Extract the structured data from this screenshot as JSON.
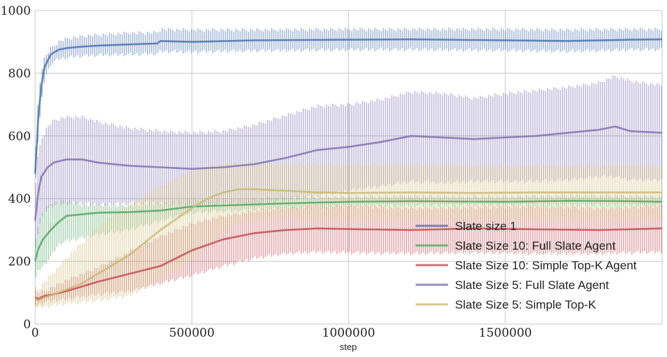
{
  "chart_data": {
    "type": "line",
    "title": "",
    "xlabel": "step",
    "ylabel": "",
    "xlim": [
      0,
      2000000
    ],
    "ylim": [
      0,
      1000
    ],
    "xticks": [
      0,
      500000,
      1000000,
      1500000
    ],
    "xtick_labels": [
      "0",
      "500000",
      "1000000",
      "1500000"
    ],
    "yticks": [
      0,
      200,
      400,
      600,
      800,
      1000
    ],
    "ytick_labels": [
      "0",
      "200",
      "400",
      "600",
      "800",
      "1000"
    ],
    "grid": true,
    "legend_position": "lower-right",
    "series": [
      {
        "name": "Slate size 1",
        "color": "#4c72b0",
        "x": [
          0,
          5000,
          10000,
          20000,
          30000,
          50000,
          75000,
          100000,
          150000,
          200000,
          300000,
          390000,
          400000,
          500000,
          700000,
          1000000,
          1200000,
          1500000,
          1700000,
          1900000,
          2000000
        ],
        "mean": [
          480,
          560,
          660,
          760,
          820,
          860,
          875,
          880,
          885,
          888,
          892,
          895,
          903,
          900,
          905,
          907,
          908,
          905,
          903,
          907,
          908
        ],
        "upper": [
          520,
          610,
          720,
          810,
          850,
          880,
          900,
          910,
          918,
          922,
          928,
          930,
          940,
          938,
          938,
          940,
          940,
          940,
          938,
          940,
          940
        ],
        "lower": [
          440,
          510,
          600,
          700,
          780,
          830,
          845,
          850,
          855,
          858,
          860,
          862,
          870,
          868,
          872,
          875,
          876,
          873,
          870,
          875,
          876
        ]
      },
      {
        "name": "Slate Size 10: Full Slate Agent",
        "color": "#55a868",
        "x": [
          0,
          10000,
          25000,
          50000,
          75000,
          100000,
          150000,
          200000,
          300000,
          400000,
          500000,
          600000,
          800000,
          1000000,
          1200000,
          1500000,
          1700000,
          1900000,
          2000000
        ],
        "mean": [
          200,
          240,
          270,
          300,
          325,
          345,
          350,
          355,
          357,
          362,
          375,
          378,
          385,
          390,
          392,
          390,
          393,
          392,
          390
        ],
        "upper": [
          260,
          320,
          360,
          385,
          390,
          395,
          380,
          380,
          378,
          385,
          395,
          395,
          402,
          405,
          408,
          405,
          410,
          408,
          406
        ],
        "lower": [
          140,
          170,
          185,
          215,
          255,
          265,
          275,
          285,
          300,
          330,
          355,
          360,
          368,
          375,
          378,
          378,
          378,
          378,
          375
        ]
      },
      {
        "name": "Slate Size 10: Simple Top-K Agent",
        "color": "#c44e52",
        "x": [
          0,
          10000,
          30000,
          60000,
          100000,
          200000,
          300000,
          400000,
          500000,
          600000,
          700000,
          800000,
          900000,
          1000000,
          1200000,
          1400000,
          1600000,
          1800000,
          2000000
        ],
        "mean": [
          85,
          80,
          90,
          95,
          105,
          135,
          160,
          185,
          235,
          270,
          290,
          300,
          305,
          303,
          300,
          305,
          302,
          300,
          305
        ],
        "upper": [
          105,
          100,
          105,
          120,
          140,
          180,
          230,
          280,
          320,
          345,
          360,
          370,
          375,
          375,
          370,
          372,
          375,
          370,
          375
        ],
        "lower": [
          65,
          60,
          70,
          75,
          80,
          95,
          105,
          130,
          155,
          185,
          210,
          225,
          230,
          228,
          225,
          228,
          225,
          225,
          230
        ]
      },
      {
        "name": "Slate Size 5: Full Slate Agent",
        "color": "#8172b2",
        "x": [
          0,
          10000,
          20000,
          40000,
          60000,
          100000,
          150000,
          200000,
          300000,
          400000,
          500000,
          600000,
          700000,
          800000,
          900000,
          1000000,
          1100000,
          1200000,
          1300000,
          1400000,
          1500000,
          1600000,
          1700000,
          1800000,
          1850000,
          1900000,
          2000000
        ],
        "mean": [
          330,
          420,
          470,
          500,
          515,
          525,
          525,
          515,
          505,
          500,
          495,
          500,
          510,
          530,
          555,
          565,
          580,
          600,
          595,
          590,
          595,
          600,
          610,
          620,
          630,
          615,
          610
        ],
        "upper": [
          430,
          540,
          590,
          630,
          650,
          660,
          660,
          645,
          625,
          615,
          610,
          615,
          635,
          665,
          695,
          700,
          715,
          740,
          735,
          720,
          735,
          745,
          755,
          770,
          790,
          775,
          760
        ],
        "lower": [
          220,
          300,
          340,
          370,
          380,
          385,
          385,
          380,
          385,
          385,
          380,
          385,
          385,
          395,
          410,
          425,
          440,
          455,
          450,
          455,
          455,
          455,
          460,
          470,
          470,
          460,
          460
        ]
      },
      {
        "name": "Slate Size 5: Simple Top-K",
        "color": "#ccb974",
        "x": [
          0,
          10000,
          30000,
          60000,
          100000,
          150000,
          200000,
          300000,
          400000,
          500000,
          550000,
          600000,
          650000,
          700000,
          800000,
          900000,
          1000000,
          1200000,
          1400000,
          1600000,
          1800000,
          2000000
        ],
        "mean": [
          80,
          75,
          85,
          95,
          110,
          130,
          160,
          220,
          300,
          370,
          400,
          420,
          430,
          430,
          425,
          420,
          418,
          420,
          418,
          420,
          420,
          420
        ],
        "upper": [
          120,
          110,
          135,
          165,
          210,
          260,
          310,
          380,
          440,
          490,
          500,
          510,
          515,
          515,
          510,
          510,
          508,
          508,
          505,
          505,
          505,
          505
        ],
        "lower": [
          55,
          50,
          55,
          60,
          65,
          70,
          75,
          90,
          140,
          200,
          250,
          290,
          320,
          330,
          335,
          330,
          330,
          330,
          330,
          330,
          330,
          330
        ]
      }
    ]
  }
}
